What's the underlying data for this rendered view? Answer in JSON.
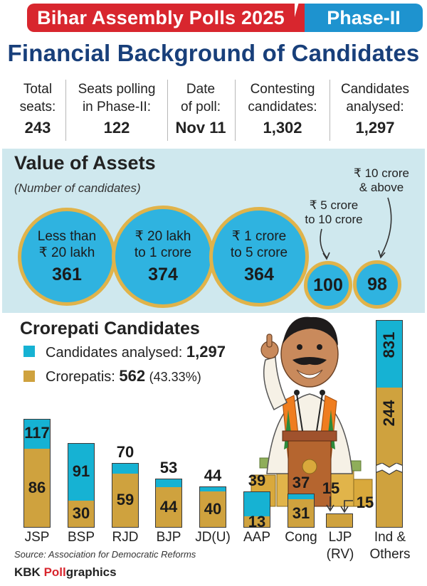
{
  "header": {
    "title": "Bihar Assembly Polls 2025",
    "phase": "Phase-II",
    "main_title": "Financial Background of Candidates"
  },
  "stats": [
    {
      "label1": "Total",
      "label2": "seats:",
      "value": "243"
    },
    {
      "label1": "Seats polling",
      "label2": "in Phase-II:",
      "value": "122"
    },
    {
      "label1": "Date",
      "label2": "of poll:",
      "value": "Nov 11"
    },
    {
      "label1": "Contesting",
      "label2": "candidates:",
      "value": "1,302"
    },
    {
      "label1": "Candidates",
      "label2": "analysed:",
      "value": "1,297"
    }
  ],
  "assets": {
    "title": "Value of Assets",
    "subtitle": "(Number of candidates)",
    "bubbles": [
      {
        "label1": "Less than",
        "label2": "₹ 20 lakh",
        "value": "361"
      },
      {
        "label1": "₹ 20 lakh",
        "label2": "to 1 crore",
        "value": "374"
      },
      {
        "label1": "₹ 1 crore",
        "label2": "to 5 crore",
        "value": "364"
      },
      {
        "label1": "₹ 5 crore",
        "label2": "to 10 crore",
        "value": "100"
      },
      {
        "label1": "₹ 10 crore",
        "label2": "& above",
        "value": "98"
      }
    ]
  },
  "crorepati": {
    "title": "Crorepati Candidates",
    "legend_analysed_label": "Candidates analysed:",
    "legend_analysed_value": "1,297",
    "legend_crorepatis_label": "Crorepatis:",
    "legend_crorepatis_value": "562",
    "legend_crorepatis_pct": "(43.33%)"
  },
  "colors": {
    "analysed": "#16b2d3",
    "crorepati": "#cfa23e",
    "header_red": "#d8262e",
    "header_blue": "#1e93cf",
    "title_navy": "#183f7a",
    "bubble": "#2fb3e0",
    "bubble_ring": "#e0b34a",
    "panel": "#cfe8ee"
  },
  "chart_data": {
    "type": "bar",
    "title": "Crorepati Candidates",
    "categories": [
      "JSP",
      "BSP",
      "RJD",
      "BJP",
      "JD(U)",
      "AAP",
      "Cong",
      "LJP (RV)",
      "Ind & Others"
    ],
    "series": [
      {
        "name": "Crorepatis",
        "values": [
          86,
          30,
          59,
          44,
          40,
          13,
          31,
          15,
          244
        ]
      },
      {
        "name": "Candidates analysed",
        "values": [
          117,
          91,
          70,
          53,
          44,
          39,
          37,
          15,
          831
        ]
      }
    ],
    "broken_axis_categories": [
      "Ind & Others"
    ],
    "xlabel": "",
    "ylabel": ""
  },
  "footer": {
    "source": "Source: Association for Democratic Reforms",
    "credit_prefix": "KBK ",
    "credit_red": "Poll",
    "credit_suffix": "graphics"
  }
}
